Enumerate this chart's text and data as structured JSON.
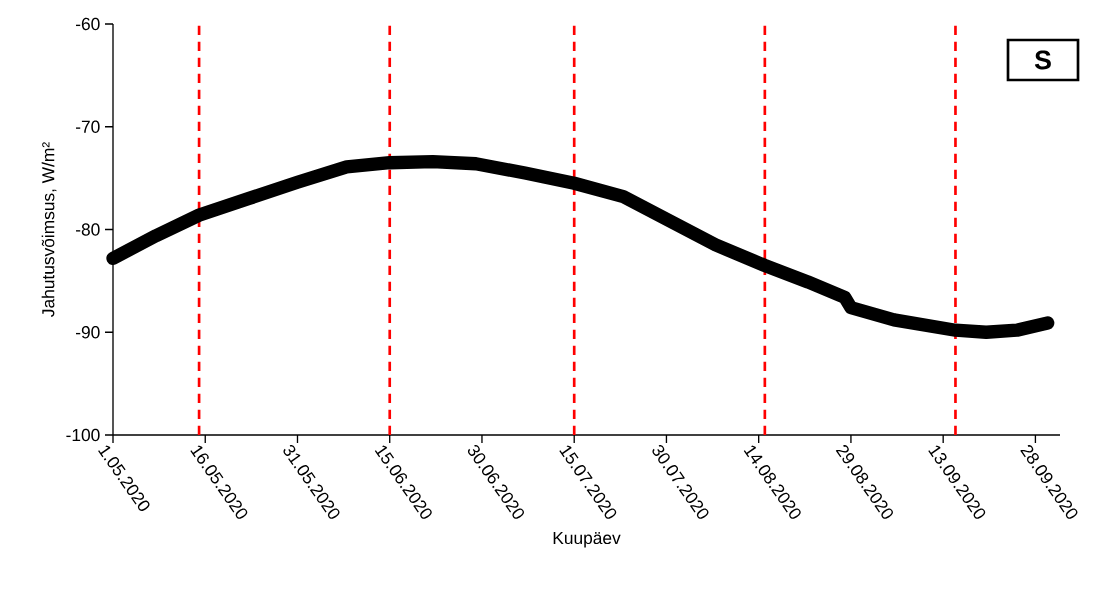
{
  "chart_data": {
    "type": "line",
    "xlabel": "Kuupäev",
    "ylabel": "Jahutusvõimsus, W/m²",
    "annotations": [
      "S"
    ],
    "x": [
      "2020-05-01",
      "2020-05-08",
      "2020-05-15",
      "2020-05-23",
      "2020-05-31",
      "2020-06-08",
      "2020-06-15",
      "2020-06-22",
      "2020-06-29",
      "2020-07-07",
      "2020-07-15",
      "2020-07-23",
      "2020-07-31",
      "2020-08-07",
      "2020-08-15",
      "2020-08-22",
      "2020-08-28",
      "2020-08-29",
      "2020-09-05",
      "2020-09-15",
      "2020-09-20",
      "2020-09-25",
      "2020-09-30"
    ],
    "series": [
      {
        "color": "#000000",
        "values": [
          -82.8,
          -80.6,
          -78.6,
          -77.0,
          -75.4,
          -73.9,
          -73.5,
          -73.4,
          -73.6,
          -74.5,
          -75.5,
          -76.8,
          -79.3,
          -81.5,
          -83.5,
          -85.1,
          -86.6,
          -87.6,
          -88.8,
          -89.8,
          -90.0,
          -89.8,
          -89.1
        ]
      }
    ],
    "xlim": [
      "2020-05-01",
      "2020-10-02"
    ],
    "xticks": [
      {
        "value": "2020-05-01",
        "label": "1.05.2020"
      },
      {
        "value": "2020-05-16",
        "label": "16.05.2020"
      },
      {
        "value": "2020-05-31",
        "label": "31.05.2020"
      },
      {
        "value": "2020-06-15",
        "label": "15.06.2020"
      },
      {
        "value": "2020-06-30",
        "label": "30.06.2020"
      },
      {
        "value": "2020-07-15",
        "label": "15.07.2020"
      },
      {
        "value": "2020-07-30",
        "label": "30.07.2020"
      },
      {
        "value": "2020-08-14",
        "label": "14.08.2020"
      },
      {
        "value": "2020-08-29",
        "label": "29.08.2020"
      },
      {
        "value": "2020-09-13",
        "label": "13.09.2020"
      },
      {
        "value": "2020-09-28",
        "label": "28.09.2020"
      }
    ],
    "ylim": [
      -100,
      -60
    ],
    "yticks": [
      -100,
      -90,
      -80,
      -70,
      -60
    ],
    "ref_lines": [
      {
        "axis": "x",
        "value": "2020-05-15",
        "color": "#ff0000",
        "line_style": "dashed"
      },
      {
        "axis": "x",
        "value": "2020-06-15",
        "color": "#ff0000",
        "line_style": "dashed"
      },
      {
        "axis": "x",
        "value": "2020-07-15",
        "color": "#ff0000",
        "line_style": "dashed"
      },
      {
        "axis": "x",
        "value": "2020-08-15",
        "color": "#ff0000",
        "line_style": "dashed"
      },
      {
        "axis": "x",
        "value": "2020-09-15",
        "color": "#ff0000",
        "line_style": "dashed"
      }
    ],
    "grid": false,
    "marker": "none",
    "line_style": "solid"
  }
}
